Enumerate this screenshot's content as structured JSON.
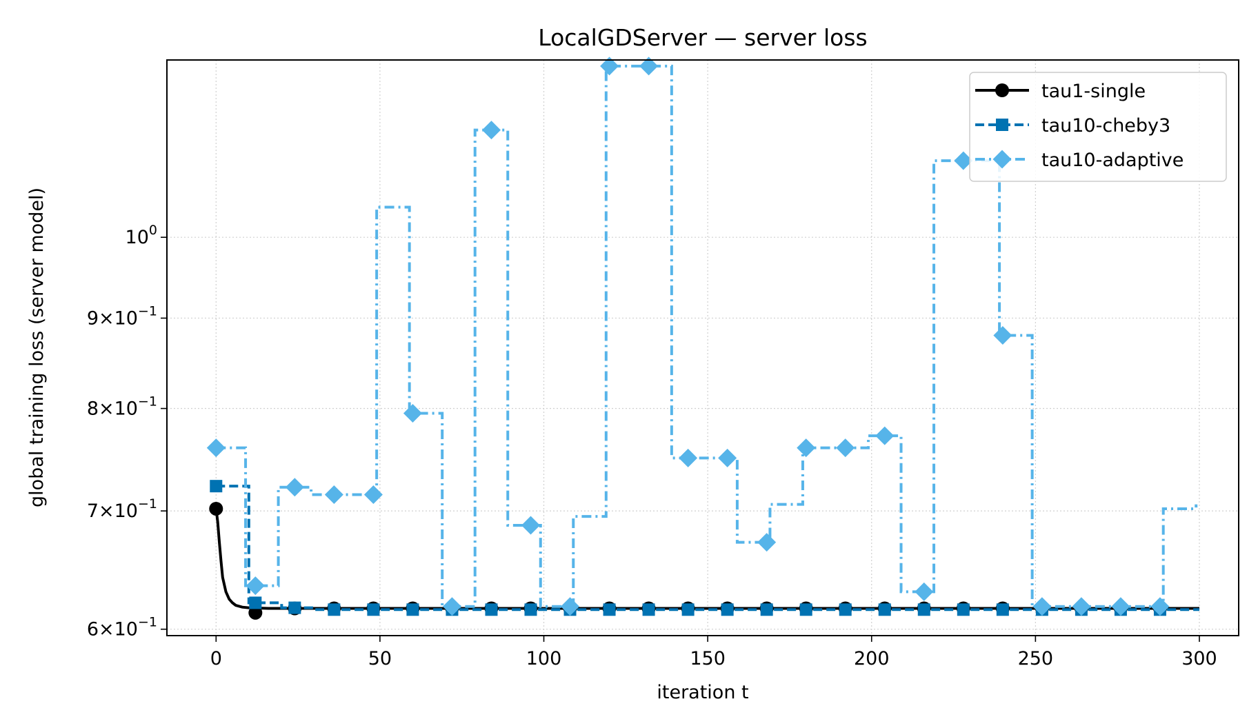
{
  "chart_data": {
    "type": "line",
    "title": "LocalGDServer — server loss",
    "xlabel": "iteration t",
    "ylabel": "global training loss (server model)",
    "xlim": [
      -15,
      312
    ],
    "ylim": [
      0.595,
      1.26
    ],
    "yscale": "log",
    "grid": true,
    "legend_position": "top-right",
    "x_ticks": [
      {
        "value": 0,
        "label": "0"
      },
      {
        "value": 50,
        "label": "50"
      },
      {
        "value": 100,
        "label": "100"
      },
      {
        "value": 150,
        "label": "150"
      },
      {
        "value": 200,
        "label": "200"
      },
      {
        "value": 250,
        "label": "250"
      },
      {
        "value": 300,
        "label": "300"
      }
    ],
    "y_ticks": [
      {
        "value": 0.6,
        "mant": "6",
        "exp": "−1"
      },
      {
        "value": 0.7,
        "mant": "7",
        "exp": "−1"
      },
      {
        "value": 0.8,
        "mant": "8",
        "exp": "−1"
      },
      {
        "value": 0.9,
        "mant": "9",
        "exp": "−1"
      },
      {
        "value": 1.0,
        "mant": "",
        "exp": "0"
      }
    ],
    "series": [
      {
        "name": "tau1-single",
        "color": "#000000",
        "marker": "circle",
        "dash": "solid",
        "step": false,
        "x": [
          0,
          0.5,
          1,
          1.5,
          2,
          3,
          4,
          5,
          6,
          8,
          10,
          12,
          16,
          20,
          30,
          50,
          100,
          150,
          200,
          250,
          300
        ],
        "y": [
          0.702,
          0.69,
          0.672,
          0.656,
          0.642,
          0.63,
          0.624,
          0.621,
          0.619,
          0.6175,
          0.617,
          0.6168,
          0.6165,
          0.6165,
          0.6165,
          0.6165,
          0.6165,
          0.6165,
          0.6165,
          0.6165,
          0.6165
        ],
        "marker_x": [
          0,
          12,
          24,
          36,
          48,
          60,
          72,
          84,
          96,
          108,
          120,
          132,
          144,
          156,
          168,
          180,
          192,
          204,
          216,
          228,
          240,
          252,
          264,
          276,
          288
        ],
        "marker_y": [
          0.702,
          0.613,
          0.6165,
          0.6165,
          0.6165,
          0.6165,
          0.6165,
          0.6165,
          0.6165,
          0.6165,
          0.6165,
          0.6165,
          0.6165,
          0.6165,
          0.6165,
          0.6165,
          0.6165,
          0.6165,
          0.6165,
          0.6165,
          0.6165,
          0.6165,
          0.6165,
          0.6165,
          0.6165
        ]
      },
      {
        "name": "tau10-cheby3",
        "color": "#0072b2",
        "marker": "square",
        "dash": "dashed",
        "step": true,
        "x": [
          0,
          10,
          20,
          30,
          40,
          50,
          60,
          70,
          80,
          90,
          100,
          110,
          120,
          130,
          140,
          150,
          160,
          170,
          180,
          190,
          200,
          210,
          220,
          230,
          240,
          250,
          260,
          270,
          280,
          290,
          300
        ],
        "y": [
          0.723,
          0.621,
          0.617,
          0.6155,
          0.6155,
          0.6155,
          0.6155,
          0.6155,
          0.6155,
          0.6155,
          0.6155,
          0.6155,
          0.6155,
          0.6155,
          0.6155,
          0.6155,
          0.6155,
          0.6155,
          0.6155,
          0.6155,
          0.6155,
          0.6155,
          0.6155,
          0.6155,
          0.6155,
          0.6155,
          0.6155,
          0.6155,
          0.6155,
          0.6155,
          0.6155
        ],
        "marker_x": [
          0,
          12,
          24,
          36,
          48,
          60,
          72,
          84,
          96,
          108,
          120,
          132,
          144,
          156,
          168,
          180,
          192,
          204,
          216,
          228,
          240,
          252,
          264,
          276,
          288
        ],
        "marker_y": [
          0.723,
          0.621,
          0.617,
          0.6155,
          0.6155,
          0.6155,
          0.6155,
          0.6155,
          0.6155,
          0.6155,
          0.6155,
          0.6155,
          0.6155,
          0.6155,
          0.6155,
          0.6155,
          0.6155,
          0.6155,
          0.6155,
          0.6155,
          0.6155,
          0.6155,
          0.6155,
          0.6155,
          0.6155
        ]
      },
      {
        "name": "tau10-adaptive",
        "color": "#56b4e9",
        "marker": "diamond",
        "dash": "dashdot",
        "step": true,
        "x": [
          0,
          9,
          19,
          29,
          39,
          49,
          59,
          69,
          79,
          89,
          99,
          109,
          119,
          129,
          139,
          149,
          159,
          169,
          179,
          189,
          199,
          209,
          219,
          229,
          239,
          249,
          259,
          269,
          279,
          289,
          299
        ],
        "y": [
          0.76,
          0.635,
          0.722,
          0.715,
          0.715,
          1.04,
          0.795,
          0.618,
          1.15,
          0.687,
          0.618,
          0.695,
          1.25,
          1.25,
          0.75,
          0.75,
          0.672,
          0.706,
          0.76,
          0.76,
          0.772,
          0.63,
          1.105,
          1.105,
          0.88,
          0.618,
          0.618,
          0.618,
          0.618,
          0.702,
          0.706
        ],
        "marker_x": [
          0,
          12,
          24,
          36,
          48,
          60,
          72,
          84,
          96,
          108,
          120,
          132,
          144,
          156,
          168,
          180,
          192,
          204,
          216,
          228,
          240,
          252,
          264,
          276,
          288
        ],
        "marker_y": [
          0.76,
          0.635,
          0.722,
          0.715,
          0.715,
          0.795,
          0.618,
          1.15,
          0.687,
          0.618,
          1.25,
          1.25,
          0.75,
          0.75,
          0.672,
          0.76,
          0.76,
          0.772,
          0.63,
          1.105,
          0.88,
          0.618,
          0.618,
          0.618,
          0.618
        ]
      }
    ]
  }
}
